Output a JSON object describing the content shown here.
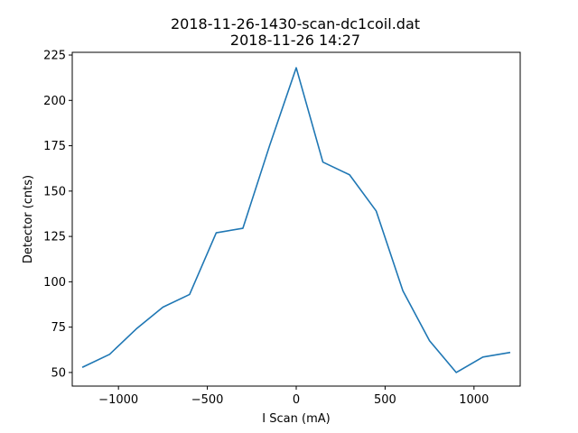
{
  "chart_data": {
    "type": "line",
    "title": "2018-11-26-1430-scan-dc1coil.dat",
    "subtitle": "2018-11-26 14:27",
    "xlabel": "I Scan (mA)",
    "ylabel": "Detector (cnts)",
    "xlim": [
      -1260,
      1260
    ],
    "ylim": [
      42.5,
      226.5
    ],
    "xticks": [
      -1000,
      -500,
      0,
      500,
      1000
    ],
    "xtick_labels": [
      "−1000",
      "−500",
      "0",
      "500",
      "1000"
    ],
    "yticks": [
      50,
      75,
      100,
      125,
      150,
      175,
      200,
      225
    ],
    "ytick_labels": [
      "50",
      "75",
      "100",
      "125",
      "150",
      "175",
      "200",
      "225"
    ],
    "grid": false,
    "series": [
      {
        "name": "Detector",
        "color": "#1f77b4",
        "x": [
          -1200,
          -1050,
          -900,
          -750,
          -600,
          -450,
          -300,
          -150,
          0,
          150,
          300,
          450,
          600,
          750,
          900,
          1050,
          1200
        ],
        "y": [
          53,
          60,
          74,
          86,
          93,
          127,
          129.5,
          175,
          218,
          166,
          159,
          139,
          95,
          67.5,
          50,
          58.5,
          61
        ]
      }
    ]
  }
}
